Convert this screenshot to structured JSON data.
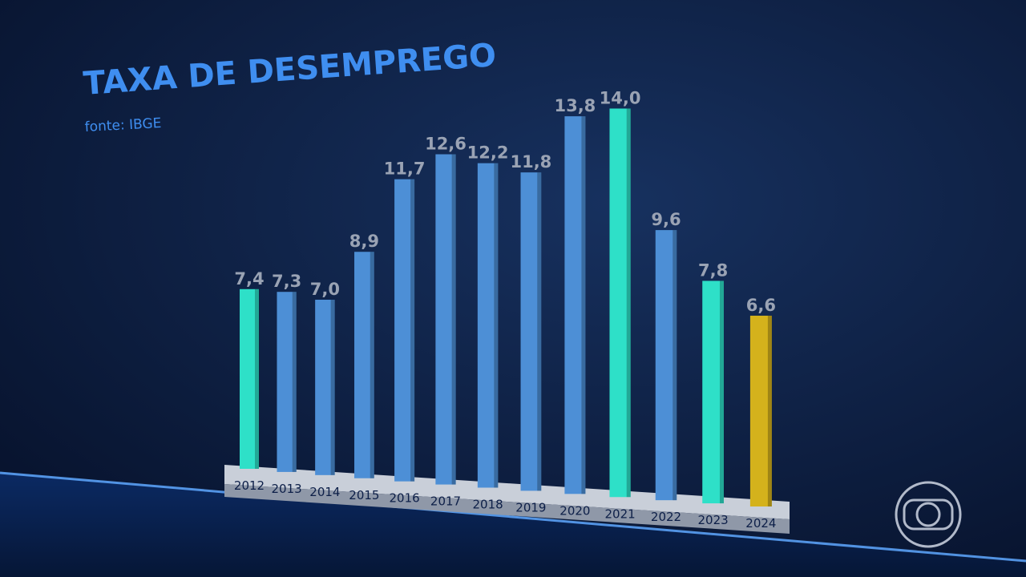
{
  "chart_data": {
    "type": "bar",
    "title": "TAXA DE DESEMPREGO",
    "subtitle": "fonte: IBGE",
    "categories": [
      "2012",
      "2013",
      "2014",
      "2015",
      "2016",
      "2017",
      "2018",
      "2019",
      "2020",
      "2021",
      "2022",
      "2023",
      "2024"
    ],
    "values": [
      7.4,
      7.3,
      7.0,
      8.9,
      11.7,
      12.6,
      12.2,
      11.8,
      13.8,
      14.0,
      9.6,
      7.8,
      6.6
    ],
    "value_labels": [
      "7,4",
      "7,3",
      "7,0",
      "8,9",
      "11,7",
      "12,6",
      "12,2",
      "11,8",
      "13,8",
      "14,0",
      "9,6",
      "7,8",
      "6,6"
    ],
    "colors": [
      "#2ee0c8",
      "#4d8fd6",
      "#4d8fd6",
      "#4d8fd6",
      "#4d8fd6",
      "#4d8fd6",
      "#4d8fd6",
      "#4d8fd6",
      "#4d8fd6",
      "#2ee0c8",
      "#4d8fd6",
      "#2ee0c8",
      "#d4b21c"
    ],
    "highlight_index": 12
  }
}
